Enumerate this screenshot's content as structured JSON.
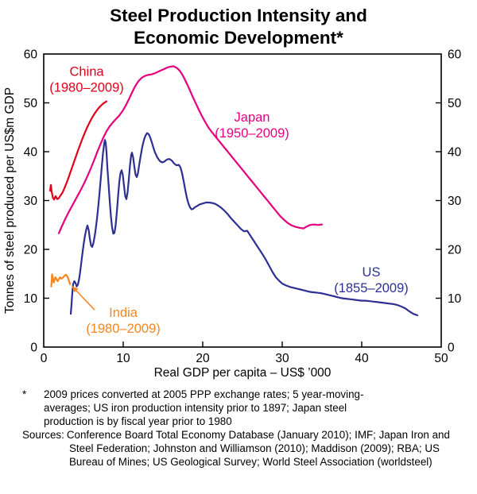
{
  "title": {
    "line1": "Steel Production Intensity and",
    "line2": "Economic Development*"
  },
  "axes": {
    "x_label": "Real GDP per capita – US$ ’000",
    "y_label": "Tonnes of steel produced per US$m GDP"
  },
  "footnotes": {
    "marker": "*",
    "note": "2009 prices converted at 2005 PPP exchange rates; 5 year-moving-averages; US iron production intensity prior to 1897; Japan steel production is by fiscal year prior to 1980",
    "sources_label": "Sources:",
    "sources_text": "Conference Board Total Economy Database (January 2010); IMF; Japan Iron and Steel Federation; Johnston and Williamson (2010); Maddison (2009); RBA; US Bureau of Mines; US Geological Survey; World Steel Association (worldsteel)"
  },
  "chart_data": {
    "type": "line",
    "title": "Steel Production Intensity and Economic Development*",
    "xlabel": "Real GDP per capita – US$ ’000",
    "ylabel": "Tonnes of steel produced per US$m GDP",
    "xlim": [
      0,
      50
    ],
    "ylim": [
      0,
      60
    ],
    "x_ticks": [
      0,
      10,
      20,
      30,
      40,
      50
    ],
    "y_ticks": [
      0,
      10,
      20,
      30,
      40,
      50,
      60
    ],
    "grid": false,
    "frame": true,
    "legend_position": "inline-annotations",
    "series": [
      {
        "id": "china",
        "name": "China (1980–2009)",
        "color": "#e2001a",
        "label": {
          "lines": [
            "China",
            "(1980–2009)"
          ],
          "x": 5.4,
          "y": 55.5
        },
        "points": [
          [
            0.8,
            32.0
          ],
          [
            0.9,
            33.2
          ],
          [
            1.0,
            31.8
          ],
          [
            1.15,
            30.6
          ],
          [
            1.3,
            30.2
          ],
          [
            1.5,
            30.9
          ],
          [
            1.7,
            30.3
          ],
          [
            1.9,
            30.5
          ],
          [
            2.1,
            31.0
          ],
          [
            2.35,
            31.6
          ],
          [
            2.6,
            32.5
          ],
          [
            2.85,
            33.5
          ],
          [
            3.1,
            34.6
          ],
          [
            3.4,
            36.0
          ],
          [
            3.7,
            37.4
          ],
          [
            4.0,
            38.8
          ],
          [
            4.3,
            40.2
          ],
          [
            4.6,
            41.5
          ],
          [
            4.9,
            42.8
          ],
          [
            5.2,
            44.0
          ],
          [
            5.5,
            45.1
          ],
          [
            5.8,
            46.1
          ],
          [
            6.1,
            47.0
          ],
          [
            6.4,
            47.8
          ],
          [
            6.7,
            48.5
          ],
          [
            7.0,
            49.1
          ],
          [
            7.3,
            49.6
          ],
          [
            7.6,
            50.0
          ],
          [
            7.9,
            50.3
          ]
        ]
      },
      {
        "id": "japan",
        "name": "Japan (1950–2009)",
        "color": "#e6007e",
        "label": {
          "lines": [
            "Japan",
            "(1950–2009)"
          ],
          "x": 26.2,
          "y": 46.2
        },
        "points": [
          [
            1.9,
            23.3
          ],
          [
            2.3,
            24.8
          ],
          [
            2.7,
            26.2
          ],
          [
            3.1,
            27.5
          ],
          [
            3.5,
            28.7
          ],
          [
            3.9,
            29.9
          ],
          [
            4.3,
            31.1
          ],
          [
            4.7,
            32.3
          ],
          [
            5.1,
            33.6
          ],
          [
            5.5,
            35.0
          ],
          [
            5.9,
            36.5
          ],
          [
            6.3,
            38.1
          ],
          [
            6.7,
            39.8
          ],
          [
            7.1,
            41.4
          ],
          [
            7.5,
            42.9
          ],
          [
            7.9,
            44.2
          ],
          [
            8.3,
            45.2
          ],
          [
            8.7,
            46.0
          ],
          [
            9.1,
            46.7
          ],
          [
            9.5,
            47.4
          ],
          [
            9.9,
            48.3
          ],
          [
            10.3,
            49.4
          ],
          [
            10.7,
            50.7
          ],
          [
            11.1,
            52.1
          ],
          [
            11.5,
            53.4
          ],
          [
            11.9,
            54.4
          ],
          [
            12.3,
            55.1
          ],
          [
            12.7,
            55.5
          ],
          [
            13.1,
            55.7
          ],
          [
            13.5,
            55.8
          ],
          [
            13.9,
            56.0
          ],
          [
            14.3,
            56.3
          ],
          [
            14.7,
            56.6
          ],
          [
            15.1,
            56.9
          ],
          [
            15.5,
            57.2
          ],
          [
            15.9,
            57.4
          ],
          [
            16.3,
            57.5
          ],
          [
            16.7,
            57.2
          ],
          [
            17.1,
            56.6
          ],
          [
            17.5,
            55.6
          ],
          [
            17.9,
            54.3
          ],
          [
            18.3,
            52.9
          ],
          [
            18.7,
            51.4
          ],
          [
            19.1,
            50.0
          ],
          [
            19.5,
            48.6
          ],
          [
            19.9,
            47.3
          ],
          [
            20.3,
            46.1
          ],
          [
            20.7,
            45.0
          ],
          [
            21.2,
            43.9
          ],
          [
            21.7,
            42.9
          ],
          [
            22.2,
            41.9
          ],
          [
            22.7,
            40.9
          ],
          [
            23.2,
            39.9
          ],
          [
            23.7,
            38.9
          ],
          [
            24.2,
            37.9
          ],
          [
            24.7,
            36.9
          ],
          [
            25.2,
            35.9
          ],
          [
            25.7,
            34.9
          ],
          [
            26.2,
            33.9
          ],
          [
            26.7,
            32.9
          ],
          [
            27.2,
            31.9
          ],
          [
            27.7,
            30.9
          ],
          [
            28.2,
            29.9
          ],
          [
            28.7,
            28.9
          ],
          [
            29.2,
            27.9
          ],
          [
            29.7,
            26.9
          ],
          [
            30.2,
            26.1
          ],
          [
            30.7,
            25.4
          ],
          [
            31.2,
            24.9
          ],
          [
            31.7,
            24.6
          ],
          [
            32.2,
            24.4
          ],
          [
            32.7,
            24.3
          ],
          [
            33.1,
            24.7
          ],
          [
            33.5,
            25.0
          ],
          [
            34.0,
            25.1
          ],
          [
            34.5,
            25.0
          ],
          [
            35.0,
            25.1
          ]
        ]
      },
      {
        "id": "us",
        "name": "US (1855–2009)",
        "color": "#2d3092",
        "label": {
          "lines": [
            "US",
            "(1855–2009)"
          ],
          "x": 41.2,
          "y": 14.5
        },
        "points": [
          [
            3.4,
            6.8
          ],
          [
            3.5,
            8.8
          ],
          [
            3.6,
            11.2
          ],
          [
            3.7,
            12.9
          ],
          [
            3.85,
            13.5
          ],
          [
            4.0,
            13.1
          ],
          [
            4.15,
            12.4
          ],
          [
            4.3,
            12.8
          ],
          [
            4.45,
            13.9
          ],
          [
            4.6,
            15.6
          ],
          [
            4.75,
            17.6
          ],
          [
            4.9,
            19.6
          ],
          [
            5.05,
            21.4
          ],
          [
            5.2,
            22.9
          ],
          [
            5.35,
            24.1
          ],
          [
            5.5,
            24.9
          ],
          [
            5.65,
            24.0
          ],
          [
            5.8,
            22.2
          ],
          [
            5.95,
            20.8
          ],
          [
            6.1,
            20.5
          ],
          [
            6.25,
            21.3
          ],
          [
            6.4,
            22.6
          ],
          [
            6.55,
            24.3
          ],
          [
            6.7,
            26.3
          ],
          [
            6.85,
            28.6
          ],
          [
            7.0,
            31.2
          ],
          [
            7.15,
            34.0
          ],
          [
            7.3,
            36.9
          ],
          [
            7.45,
            39.6
          ],
          [
            7.6,
            41.6
          ],
          [
            7.7,
            42.4
          ],
          [
            7.8,
            41.8
          ],
          [
            7.9,
            39.8
          ],
          [
            8.0,
            36.9
          ],
          [
            8.15,
            33.5
          ],
          [
            8.3,
            29.9
          ],
          [
            8.45,
            26.8
          ],
          [
            8.6,
            24.5
          ],
          [
            8.75,
            23.2
          ],
          [
            8.9,
            23.4
          ],
          [
            9.05,
            25.0
          ],
          [
            9.2,
            27.7
          ],
          [
            9.35,
            30.8
          ],
          [
            9.5,
            33.7
          ],
          [
            9.65,
            35.6
          ],
          [
            9.8,
            36.2
          ],
          [
            9.95,
            35.2
          ],
          [
            10.1,
            33.0
          ],
          [
            10.25,
            30.9
          ],
          [
            10.4,
            30.3
          ],
          [
            10.55,
            31.7
          ],
          [
            10.7,
            34.3
          ],
          [
            10.85,
            37.2
          ],
          [
            11.0,
            39.3
          ],
          [
            11.1,
            39.8
          ],
          [
            11.25,
            38.8
          ],
          [
            11.4,
            36.9
          ],
          [
            11.55,
            35.3
          ],
          [
            11.7,
            34.8
          ],
          [
            11.85,
            35.6
          ],
          [
            12.0,
            37.2
          ],
          [
            12.2,
            39.2
          ],
          [
            12.4,
            41.0
          ],
          [
            12.6,
            42.4
          ],
          [
            12.8,
            43.3
          ],
          [
            13.0,
            43.8
          ],
          [
            13.2,
            43.6
          ],
          [
            13.4,
            42.9
          ],
          [
            13.6,
            41.9
          ],
          [
            13.8,
            40.8
          ],
          [
            14.0,
            39.8
          ],
          [
            14.3,
            38.8
          ],
          [
            14.6,
            38.1
          ],
          [
            14.9,
            37.8
          ],
          [
            15.2,
            38.0
          ],
          [
            15.5,
            38.4
          ],
          [
            15.8,
            38.5
          ],
          [
            16.1,
            38.2
          ],
          [
            16.4,
            37.6
          ],
          [
            16.7,
            37.2
          ],
          [
            17.0,
            37.3
          ],
          [
            17.2,
            36.8
          ],
          [
            17.4,
            35.6
          ],
          [
            17.6,
            34.0
          ],
          [
            17.8,
            32.2
          ],
          [
            18.0,
            30.6
          ],
          [
            18.2,
            29.4
          ],
          [
            18.4,
            28.6
          ],
          [
            18.6,
            28.2
          ],
          [
            18.8,
            28.3
          ],
          [
            19.0,
            28.6
          ],
          [
            19.3,
            28.9
          ],
          [
            19.6,
            29.2
          ],
          [
            20.0,
            29.4
          ],
          [
            20.4,
            29.6
          ],
          [
            20.8,
            29.6
          ],
          [
            21.2,
            29.5
          ],
          [
            21.6,
            29.3
          ],
          [
            22.0,
            28.9
          ],
          [
            22.4,
            28.4
          ],
          [
            22.8,
            27.8
          ],
          [
            23.2,
            27.1
          ],
          [
            23.6,
            26.3
          ],
          [
            24.0,
            25.6
          ],
          [
            24.4,
            24.9
          ],
          [
            24.8,
            24.2
          ],
          [
            25.2,
            23.7
          ],
          [
            25.6,
            23.8
          ],
          [
            26.0,
            22.8
          ],
          [
            26.4,
            21.8
          ],
          [
            26.8,
            20.8
          ],
          [
            27.2,
            19.8
          ],
          [
            27.6,
            18.8
          ],
          [
            28.0,
            17.7
          ],
          [
            28.4,
            16.5
          ],
          [
            28.8,
            15.3
          ],
          [
            29.2,
            14.3
          ],
          [
            29.6,
            13.6
          ],
          [
            30.0,
            13.0
          ],
          [
            30.5,
            12.6
          ],
          [
            31.0,
            12.3
          ],
          [
            31.5,
            12.1
          ],
          [
            32.0,
            11.9
          ],
          [
            32.5,
            11.7
          ],
          [
            33.0,
            11.5
          ],
          [
            33.5,
            11.3
          ],
          [
            34.0,
            11.2
          ],
          [
            34.5,
            11.1
          ],
          [
            35.0,
            11.0
          ],
          [
            35.5,
            10.8
          ],
          [
            36.0,
            10.6
          ],
          [
            36.5,
            10.4
          ],
          [
            37.0,
            10.2
          ],
          [
            37.5,
            10.0
          ],
          [
            38.0,
            9.9
          ],
          [
            38.5,
            9.8
          ],
          [
            39.0,
            9.7
          ],
          [
            39.5,
            9.6
          ],
          [
            40.0,
            9.5
          ],
          [
            40.5,
            9.5
          ],
          [
            41.0,
            9.4
          ],
          [
            41.5,
            9.3
          ],
          [
            42.0,
            9.2
          ],
          [
            42.5,
            9.1
          ],
          [
            43.0,
            9.0
          ],
          [
            43.5,
            8.9
          ],
          [
            44.0,
            8.8
          ],
          [
            44.5,
            8.6
          ],
          [
            45.0,
            8.3
          ],
          [
            45.5,
            7.9
          ],
          [
            46.0,
            7.3
          ],
          [
            46.5,
            6.8
          ],
          [
            47.0,
            6.5
          ]
        ]
      },
      {
        "id": "india",
        "name": "India (1980–2009)",
        "color": "#f6861f",
        "label": {
          "lines": [
            "India",
            "(1980–2009)"
          ],
          "x": 10.0,
          "y": 6.2
        },
        "arrow": {
          "from": [
            6.4,
            7.6
          ],
          "to": [
            3.55,
            12.5
          ]
        },
        "points": [
          [
            0.95,
            12.4
          ],
          [
            1.0,
            13.6
          ],
          [
            1.05,
            14.9
          ],
          [
            1.15,
            14.1
          ],
          [
            1.25,
            13.2
          ],
          [
            1.35,
            13.7
          ],
          [
            1.45,
            14.3
          ],
          [
            1.6,
            13.9
          ],
          [
            1.75,
            13.5
          ],
          [
            1.9,
            13.9
          ],
          [
            2.05,
            14.3
          ],
          [
            2.2,
            14.0
          ],
          [
            2.4,
            14.2
          ],
          [
            2.6,
            14.6
          ],
          [
            2.8,
            14.8
          ],
          [
            3.0,
            14.4
          ],
          [
            3.15,
            13.7
          ],
          [
            3.3,
            12.9
          ]
        ]
      }
    ]
  }
}
